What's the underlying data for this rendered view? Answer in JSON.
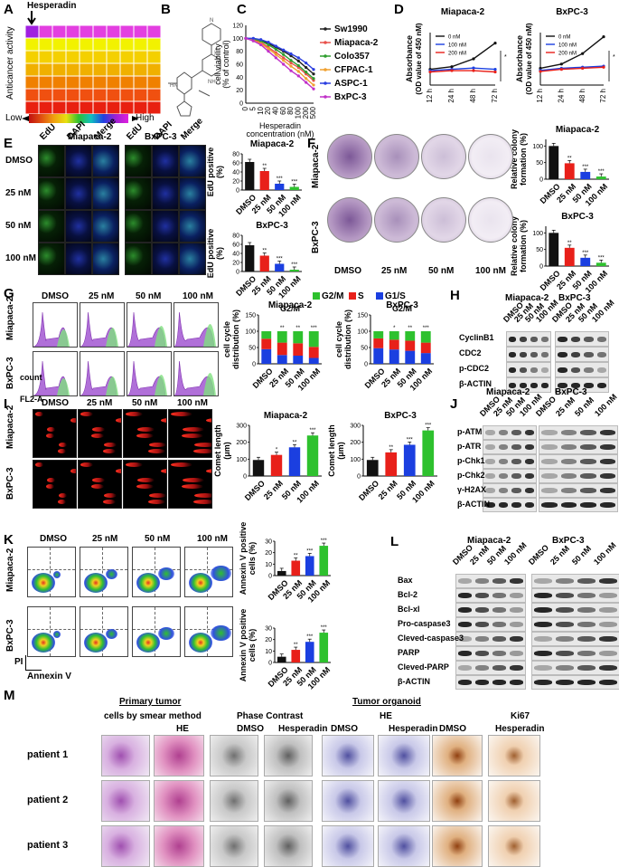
{
  "panels": {
    "A": {
      "label": "A",
      "drug": "Hesperadin",
      "ylabel": "Anticancer activity",
      "low": "Low",
      "high": "High"
    },
    "B": {
      "label": "B"
    },
    "C": {
      "label": "C"
    },
    "D": {
      "label": "D"
    },
    "E": {
      "label": "E",
      "groups": [
        "Miapaca-2",
        "BxPC-3"
      ],
      "cols": [
        "EdU",
        "DAPI",
        "Merge",
        "EdU",
        "DAPI",
        "Merge"
      ],
      "rows": [
        "DMSO",
        "25 nM",
        "50 nM",
        "100 nM"
      ]
    },
    "F": {
      "label": "F",
      "rows": [
        "Miapaca-2",
        "BxPC-3"
      ],
      "cols": [
        "DMSO",
        "25 nM",
        "50 nM",
        "100 nM"
      ]
    },
    "G": {
      "label": "G",
      "cols": [
        "DMSO",
        "25 nM",
        "50 nM",
        "100 nM"
      ],
      "rows": [
        "Miapaca-2",
        "BxPC-3"
      ],
      "count": "count",
      "fl": "FL2-A"
    },
    "H": {
      "label": "H",
      "groups": [
        "Miapaca-2",
        "BxPC-3"
      ],
      "cols": [
        "DMSO",
        "25 nM",
        "50 nM",
        "100 nM"
      ],
      "proteins": [
        "CyclinB1",
        "CDC2",
        "p-CDC2",
        "β-ACTIN"
      ]
    },
    "I": {
      "label": "I",
      "cols": [
        "DMSO",
        "25 nM",
        "50 nM",
        "100 nM"
      ],
      "rows": [
        "Miapaca-2",
        "BxPC-3"
      ]
    },
    "J": {
      "label": "J",
      "groups": [
        "Miapaca-2",
        "BxPC-3"
      ],
      "cols": [
        "DMSO",
        "25 nM",
        "50 nM",
        "100 nM"
      ],
      "proteins": [
        "p-ATM",
        "p-ATR",
        "p-Chk1",
        "p-Chk2",
        "γ-H2AX",
        "β-ACTIN"
      ]
    },
    "K": {
      "label": "K",
      "cols": [
        "DMSO",
        "25 nM",
        "50 nM",
        "100 nM"
      ],
      "rows": [
        "Miapaca-2",
        "BxPC-3"
      ],
      "pi": "PI",
      "annexin": "Annexin V"
    },
    "L": {
      "label": "L",
      "groups": [
        "Miapaca-2",
        "BxPC-3"
      ],
      "cols": [
        "DMSO",
        "25 nM",
        "50 nM",
        "100 nM"
      ],
      "proteins": [
        "Bax",
        "Bcl-2",
        "Bcl-xl",
        "Pro-caspase3",
        "Cleved-caspase3",
        "PARP",
        "Cleved-PARP",
        "β-ACTIN"
      ]
    },
    "M": {
      "label": "M",
      "primary": "Primary tumor",
      "organoid": "Tumor organoid",
      "smear": "cells by smear method",
      "he": "HE",
      "phase": "Phase Contrast",
      "he2": "HE",
      "ki67": "Ki67",
      "dmso": "DMSO",
      "hesp": "Hesperadin",
      "patients": [
        "patient 1",
        "patient 2",
        "patient 3"
      ]
    }
  },
  "colors": {
    "red": "#e8201a",
    "blue": "#1b3fe0",
    "green": "#2ec12e",
    "black": "#111111"
  },
  "chart_data": [
    {
      "id": "C",
      "type": "line",
      "xlabel": "Hesperadin concentration (nM)",
      "ylabel": "cell viability (% of control)",
      "x": [
        "0",
        "5",
        "10",
        "20",
        "40",
        "60",
        "80",
        "100",
        "200",
        "500"
      ],
      "yticks": [
        "0",
        "20",
        "40",
        "60",
        "80",
        "100",
        "120"
      ],
      "ylim": [
        0,
        120
      ],
      "series": [
        {
          "name": "Sw1990",
          "color": "#222222",
          "values": [
            100,
            99,
            97,
            92,
            86,
            80,
            73,
            65,
            55,
            45
          ]
        },
        {
          "name": "Miapaca-2",
          "color": "#e8504a",
          "values": [
            100,
            98,
            94,
            86,
            78,
            70,
            62,
            55,
            45,
            35
          ]
        },
        {
          "name": "Colo357",
          "color": "#2e9e2e",
          "values": [
            100,
            99,
            96,
            90,
            83,
            75,
            66,
            58,
            48,
            38
          ]
        },
        {
          "name": "CFPAC-1",
          "color": "#f0a030",
          "values": [
            100,
            97,
            92,
            84,
            75,
            66,
            57,
            49,
            38,
            28
          ]
        },
        {
          "name": "ASPC-1",
          "color": "#2a3ee0",
          "values": [
            100,
            100,
            98,
            94,
            88,
            82,
            76,
            70,
            62,
            52
          ]
        },
        {
          "name": "BxPC-3",
          "color": "#c030c8",
          "values": [
            100,
            96,
            90,
            80,
            70,
            60,
            50,
            42,
            32,
            22
          ]
        }
      ]
    },
    {
      "id": "D1",
      "type": "line",
      "title": "Miapaca-2",
      "ylabel": "Absorbance (OD value of 450 nM)",
      "x": [
        "12 h",
        "24 h",
        "48 h",
        "72 h"
      ],
      "series": [
        {
          "name": "0 nM",
          "color": "#111111",
          "values": [
            0.6,
            0.7,
            1.0,
            1.6
          ]
        },
        {
          "name": "100 nM",
          "color": "#1b3fe0",
          "values": [
            0.55,
            0.6,
            0.65,
            0.6
          ]
        },
        {
          "name": "200 nM",
          "color": "#e8201a",
          "values": [
            0.5,
            0.55,
            0.55,
            0.5
          ]
        }
      ],
      "ylim": [
        0,
        2
      ]
    },
    {
      "id": "D2",
      "type": "line",
      "title": "BxPC-3",
      "ylabel": "Absorbance (OD value of 450 nM)",
      "x": [
        "12 h",
        "24 h",
        "48 h",
        "72 h"
      ],
      "series": [
        {
          "name": "0 nM",
          "color": "#111111",
          "values": [
            0.8,
            1.0,
            1.5,
            2.3
          ]
        },
        {
          "name": "100 nM",
          "color": "#1b3fe0",
          "values": [
            0.7,
            0.8,
            0.85,
            0.9
          ]
        },
        {
          "name": "200 nM",
          "color": "#e8201a",
          "values": [
            0.65,
            0.75,
            0.8,
            0.85
          ]
        }
      ],
      "ylim": [
        0,
        2.5
      ]
    },
    {
      "id": "E1",
      "type": "bar",
      "title": "Miapaca-2",
      "ylabel": "EdU positive (%)",
      "categories": [
        "DMSO",
        "25 nM",
        "50 nM",
        "100 nM"
      ],
      "values": [
        62,
        42,
        14,
        7
      ],
      "ylim": [
        0,
        80
      ],
      "yticks": [
        "0",
        "20",
        "40",
        "60",
        "80"
      ],
      "sig": [
        "",
        "**",
        "***",
        "***"
      ]
    },
    {
      "id": "E2",
      "type": "bar",
      "title": "BxPC-3",
      "ylabel": "EdU positive (%)",
      "categories": [
        "DMSO",
        "25 nM",
        "50 nM",
        "100 nM"
      ],
      "values": [
        58,
        35,
        17,
        4
      ],
      "ylim": [
        0,
        80
      ],
      "yticks": [
        "0",
        "20",
        "40",
        "60",
        "80"
      ],
      "sig": [
        "",
        "**",
        "***",
        "***"
      ]
    },
    {
      "id": "F1",
      "type": "bar",
      "title": "Miapaca-2",
      "ylabel": "Relative colony formation (%)",
      "categories": [
        "DMSO",
        "25 nM",
        "50 nM",
        "100 nM"
      ],
      "values": [
        100,
        48,
        22,
        8
      ],
      "ylim": [
        0,
        120
      ],
      "yticks": [
        "0",
        "50",
        "100"
      ],
      "sig": [
        "",
        "**",
        "***",
        "***"
      ]
    },
    {
      "id": "F2",
      "type": "bar",
      "title": "BxPC-3",
      "ylabel": "Relative colony formation (%)",
      "categories": [
        "DMSO",
        "25 nM",
        "50 nM",
        "100 nM"
      ],
      "values": [
        100,
        55,
        25,
        10
      ],
      "ylim": [
        0,
        120
      ],
      "yticks": [
        "0",
        "50",
        "100"
      ],
      "sig": [
        "",
        "**",
        "***",
        "***"
      ]
    },
    {
      "id": "G1",
      "type": "bar",
      "title": "Miapaca-2",
      "ylabel": "cell cycle distribution (%)",
      "categories": [
        "DMSO",
        "25 nM",
        "50 nM",
        "100 nM"
      ],
      "stacked": true,
      "legend": [
        "G2/M",
        "S",
        "G1/S"
      ],
      "series": [
        {
          "name": "G1/S",
          "color": "#1b3fe0",
          "values": [
            45,
            27,
            25,
            18
          ]
        },
        {
          "name": "S",
          "color": "#e8201a",
          "values": [
            32,
            38,
            38,
            34
          ]
        },
        {
          "name": "G2/M",
          "color": "#2ec12e",
          "values": [
            23,
            35,
            37,
            48
          ]
        }
      ],
      "ylim": [
        0,
        150
      ],
      "yticks": [
        "0",
        "50",
        "100",
        "150"
      ],
      "sig_label": "G2/M",
      "sig": [
        "",
        "**",
        "**",
        "***"
      ]
    },
    {
      "id": "G2",
      "type": "bar",
      "title": "BxPC-3",
      "ylabel": "cell cycle distribution (%)",
      "categories": [
        "DMSO",
        "25 nM",
        "50 nM",
        "100 nM"
      ],
      "stacked": true,
      "series": [
        {
          "name": "G1/S",
          "color": "#1b3fe0",
          "values": [
            48,
            44,
            40,
            33
          ]
        },
        {
          "name": "S",
          "color": "#e8201a",
          "values": [
            30,
            30,
            31,
            32
          ]
        },
        {
          "name": "G2/M",
          "color": "#2ec12e",
          "values": [
            22,
            26,
            29,
            35
          ]
        }
      ],
      "ylim": [
        0,
        150
      ],
      "yticks": [
        "0",
        "50",
        "100",
        "150"
      ],
      "sig_label": "G2/M",
      "sig": [
        "",
        "*",
        "**",
        "***"
      ]
    },
    {
      "id": "I1",
      "type": "bar",
      "title": "Miapaca-2",
      "ylabel": "Comet length (μm)",
      "categories": [
        "DMSO",
        "25 nM",
        "50 nM",
        "100 nM"
      ],
      "values": [
        95,
        125,
        170,
        240
      ],
      "ylim": [
        0,
        300
      ],
      "yticks": [
        "0",
        "100",
        "200",
        "300"
      ],
      "sig": [
        "",
        "*",
        "**",
        "***"
      ]
    },
    {
      "id": "I2",
      "type": "bar",
      "title": "BxPC-3",
      "ylabel": "Comet length (μm)",
      "categories": [
        "DMSO",
        "25 nM",
        "50 nM",
        "100 nM"
      ],
      "values": [
        95,
        140,
        185,
        270
      ],
      "ylim": [
        0,
        300
      ],
      "yticks": [
        "0",
        "100",
        "200",
        "300"
      ],
      "sig": [
        "",
        "**",
        "***",
        "***"
      ]
    },
    {
      "id": "K1",
      "type": "bar",
      "ylabel": "Annexin V positive cells (%)",
      "categories": [
        "DMSO",
        "25 nM",
        "50 nM",
        "100 nM"
      ],
      "values": [
        4,
        13,
        17,
        26
      ],
      "ylim": [
        0,
        30
      ],
      "yticks": [
        "0",
        "10",
        "20",
        "30"
      ],
      "sig": [
        "",
        "**",
        "***",
        "***"
      ]
    },
    {
      "id": "K2",
      "type": "bar",
      "ylabel": "Annexin V positive cells (%)",
      "categories": [
        "DMSO",
        "25 nM",
        "50 nM",
        "100 nM"
      ],
      "values": [
        5,
        11,
        18,
        26
      ],
      "ylim": [
        0,
        30
      ],
      "yticks": [
        "0",
        "10",
        "20",
        "30"
      ],
      "sig": [
        "",
        "**",
        "***",
        "***"
      ]
    }
  ]
}
